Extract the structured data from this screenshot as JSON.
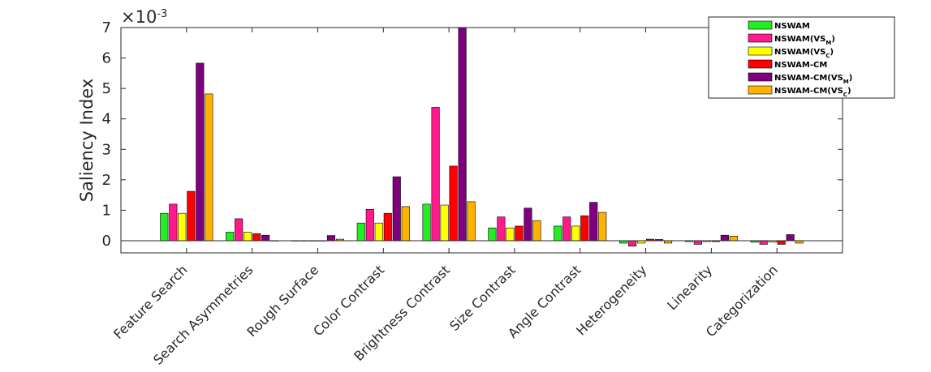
{
  "chart_data": {
    "type": "bar",
    "ylabel": "Saliency Index",
    "exponent_label": "×10",
    "exponent_power": "-3",
    "ylim": [
      -0.4,
      7
    ],
    "yticks": [
      0,
      1,
      2,
      3,
      4,
      5,
      6,
      7
    ],
    "grid": false,
    "legend_position": "top-right",
    "categories": [
      "Feature Search",
      "Search Asymmetries",
      "Rough Surface",
      "Color Contrast",
      "Brightness Contrast",
      "Size Contrast",
      "Angle Contrast",
      "Heterogeneity",
      "Linearity",
      "Categorization"
    ],
    "series": [
      {
        "name": "NSWAM",
        "legend_base": "NSWAM",
        "legend_sub": "",
        "legend_tail": "",
        "color": "#22ee22",
        "values": [
          0.9,
          0.28,
          0.0,
          0.58,
          1.2,
          0.42,
          0.48,
          -0.08,
          -0.03,
          -0.05
        ]
      },
      {
        "name": "NSWAM(VS_M)",
        "legend_base": "NSWAM(VS",
        "legend_sub": "M",
        "legend_tail": ")",
        "color": "#ff1a8c",
        "values": [
          1.2,
          0.72,
          0.0,
          1.03,
          4.38,
          0.78,
          0.78,
          -0.18,
          -0.12,
          -0.12
        ]
      },
      {
        "name": "NSWAM(VS_C)",
        "legend_base": "NSWAM(VS",
        "legend_sub": "C",
        "legend_tail": ")",
        "color": "#ffff00",
        "values": [
          0.9,
          0.28,
          0.0,
          0.58,
          1.17,
          0.42,
          0.48,
          -0.08,
          -0.03,
          -0.05
        ]
      },
      {
        "name": "NSWAM-CM",
        "legend_base": "NSWAM-CM",
        "legend_sub": "",
        "legend_tail": "",
        "color": "#ff0000",
        "values": [
          1.62,
          0.23,
          0.0,
          0.9,
          2.45,
          0.48,
          0.82,
          0.05,
          -0.03,
          -0.12
        ]
      },
      {
        "name": "NSWAM-CM(VS_M)",
        "legend_base": "NSWAM-CM(VS",
        "legend_sub": "M",
        "legend_tail": ")",
        "color": "#7f007f",
        "values": [
          5.83,
          0.18,
          0.17,
          2.1,
          7.0,
          1.07,
          1.26,
          0.04,
          0.18,
          0.2
        ]
      },
      {
        "name": "NSWAM-CM(VS_C)",
        "legend_base": "NSWAM-CM(VS",
        "legend_sub": "C",
        "legend_tail": ")",
        "color": "#ffb300",
        "values": [
          4.82,
          0.0,
          0.05,
          1.12,
          1.28,
          0.66,
          0.93,
          -0.08,
          0.15,
          -0.08
        ]
      }
    ]
  }
}
